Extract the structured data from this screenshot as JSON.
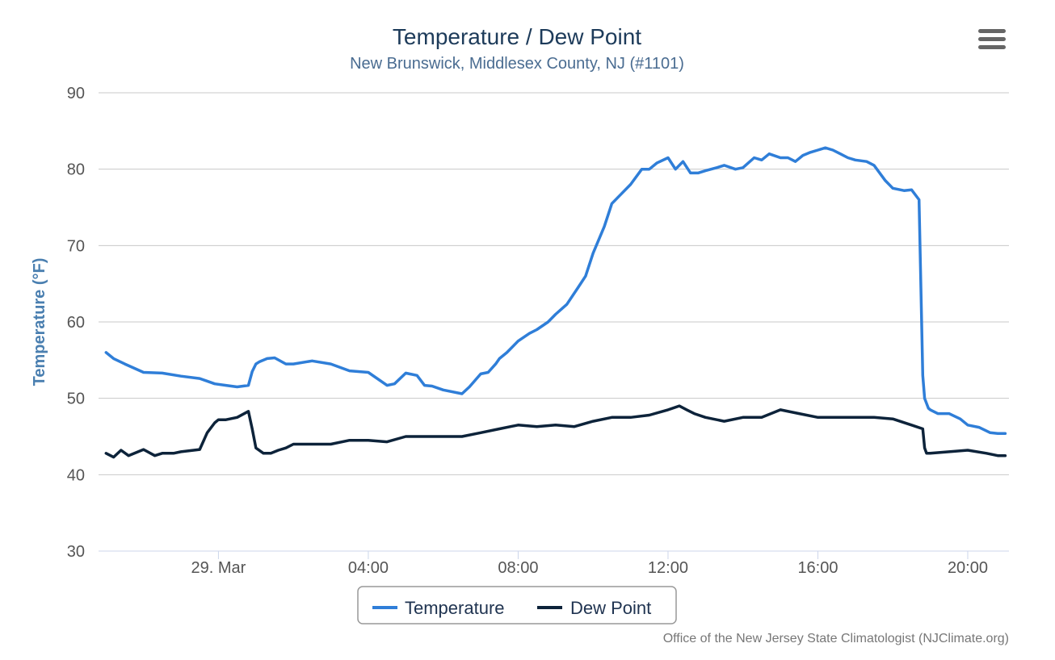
{
  "chart_data": {
    "type": "line",
    "title": "Temperature / Dew Point",
    "subtitle": "New Brunswick, Middlesex County, NJ (#1101)",
    "ylabel": "Temperature (°F)",
    "xlabel": "",
    "ylim": [
      30,
      90
    ],
    "yticks": [
      30,
      40,
      50,
      60,
      70,
      80,
      90
    ],
    "xlim": [
      -3.2,
      21.1
    ],
    "xticks": [
      {
        "x": 0,
        "label": "29. Mar"
      },
      {
        "x": 4,
        "label": "04:00"
      },
      {
        "x": 8,
        "label": "08:00"
      },
      {
        "x": 12,
        "label": "12:00"
      },
      {
        "x": 16,
        "label": "16:00"
      },
      {
        "x": 20,
        "label": "20:00"
      }
    ],
    "grid": true,
    "legend_position": "bottom-center",
    "credits": "Office of the New Jersey State Climatologist (NJClimate.org)",
    "series": [
      {
        "name": "Temperature",
        "color": "#2f7ed8",
        "x": [
          -3.0,
          -2.8,
          -2.5,
          -2.0,
          -1.5,
          -1.0,
          -0.5,
          -0.1,
          0.2,
          0.5,
          0.8,
          0.9,
          1.0,
          1.1,
          1.3,
          1.5,
          1.8,
          2.0,
          2.5,
          3.0,
          3.5,
          4.0,
          4.5,
          4.7,
          5.0,
          5.3,
          5.5,
          5.7,
          6.0,
          6.5,
          6.7,
          7.0,
          7.2,
          7.4,
          7.5,
          7.7,
          8.0,
          8.3,
          8.5,
          8.8,
          9.0,
          9.3,
          9.6,
          9.8,
          10.0,
          10.3,
          10.5,
          10.7,
          11.0,
          11.3,
          11.5,
          11.7,
          12.0,
          12.2,
          12.4,
          12.6,
          12.8,
          13.0,
          13.3,
          13.5,
          13.8,
          14.0,
          14.3,
          14.5,
          14.7,
          15.0,
          15.2,
          15.4,
          15.6,
          15.8,
          16.0,
          16.2,
          16.4,
          16.6,
          16.8,
          17.0,
          17.3,
          17.5,
          17.8,
          18.0,
          18.3,
          18.5,
          18.7,
          18.8,
          18.85,
          18.95,
          19.0,
          19.2,
          19.5,
          19.8,
          20.0,
          20.3,
          20.6,
          20.8,
          21.0
        ],
        "y": [
          56.0,
          55.2,
          54.5,
          53.4,
          53.3,
          52.9,
          52.6,
          51.9,
          51.7,
          51.5,
          51.7,
          53.5,
          54.5,
          54.8,
          55.2,
          55.3,
          54.5,
          54.5,
          54.9,
          54.5,
          53.6,
          53.4,
          51.7,
          51.9,
          53.3,
          53.0,
          51.7,
          51.6,
          51.1,
          50.6,
          51.5,
          53.2,
          53.4,
          54.5,
          55.2,
          56.0,
          57.5,
          58.5,
          59.0,
          60.0,
          61.0,
          62.3,
          64.5,
          66.0,
          69.0,
          72.5,
          75.5,
          76.5,
          78.0,
          80.0,
          80.0,
          80.8,
          81.5,
          80.0,
          81.0,
          79.5,
          79.5,
          79.8,
          80.2,
          80.5,
          80.0,
          80.2,
          81.5,
          81.2,
          82.0,
          81.5,
          81.5,
          81.0,
          81.8,
          82.2,
          82.5,
          82.8,
          82.5,
          82.0,
          81.5,
          81.2,
          81.0,
          80.5,
          78.5,
          77.5,
          77.2,
          77.3,
          76.0,
          53.0,
          50.0,
          48.7,
          48.5,
          48.0,
          48.0,
          47.3,
          46.5,
          46.2,
          45.5,
          45.4,
          45.4
        ]
      },
      {
        "name": "Dew Point",
        "color": "#0d233a",
        "x": [
          -3.0,
          -2.8,
          -2.6,
          -2.4,
          -2.0,
          -1.7,
          -1.5,
          -1.2,
          -1.0,
          -0.5,
          -0.3,
          -0.1,
          0.0,
          0.2,
          0.5,
          0.8,
          0.9,
          1.0,
          1.2,
          1.4,
          1.6,
          1.8,
          2.0,
          2.5,
          3.0,
          3.5,
          4.0,
          4.5,
          5.0,
          5.5,
          6.0,
          6.5,
          7.0,
          7.5,
          8.0,
          8.5,
          9.0,
          9.5,
          10.0,
          10.5,
          11.0,
          11.5,
          12.0,
          12.3,
          12.5,
          12.7,
          13.0,
          13.5,
          14.0,
          14.5,
          15.0,
          15.5,
          16.0,
          16.5,
          17.0,
          17.5,
          18.0,
          18.5,
          18.8,
          18.85,
          18.9,
          19.0,
          19.5,
          20.0,
          20.5,
          20.8,
          21.0
        ],
        "y": [
          42.8,
          42.3,
          43.2,
          42.5,
          43.3,
          42.5,
          42.8,
          42.8,
          43.0,
          43.3,
          45.5,
          46.8,
          47.2,
          47.2,
          47.5,
          48.3,
          46.0,
          43.5,
          42.8,
          42.8,
          43.2,
          43.5,
          44.0,
          44.0,
          44.0,
          44.5,
          44.5,
          44.3,
          45.0,
          45.0,
          45.0,
          45.0,
          45.5,
          46.0,
          46.5,
          46.3,
          46.5,
          46.3,
          47.0,
          47.5,
          47.5,
          47.8,
          48.5,
          49.0,
          48.5,
          48.0,
          47.5,
          47.0,
          47.5,
          47.5,
          48.5,
          48.0,
          47.5,
          47.5,
          47.5,
          47.5,
          47.3,
          46.5,
          46.0,
          43.5,
          42.8,
          42.8,
          43.0,
          43.2,
          42.8,
          42.5,
          42.5
        ]
      }
    ]
  },
  "icons": {
    "menu": "hamburger-menu-icon"
  }
}
